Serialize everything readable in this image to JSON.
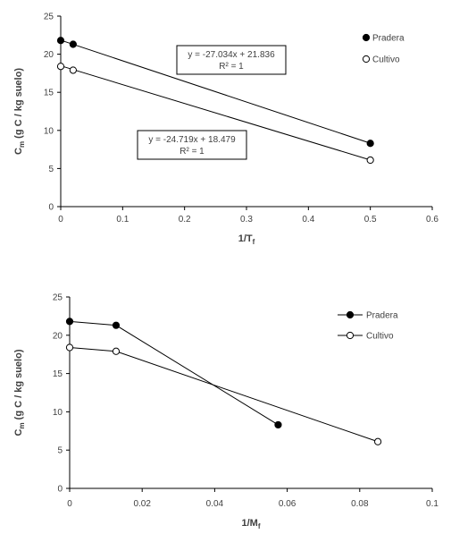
{
  "chart_data": [
    {
      "type": "scatter",
      "xlabel": {
        "main": "1/T",
        "sub": "f"
      },
      "ylabel": {
        "main": "C",
        "sub": "m",
        "rest": " (g C / kg suelo)"
      },
      "xlim": [
        0,
        0.6
      ],
      "ylim": [
        0,
        25
      ],
      "xticks": [
        0,
        0.1,
        0.2,
        0.3,
        0.4,
        0.5,
        0.6
      ],
      "xtick_labels": [
        "0",
        "0.1",
        "0.2",
        "0.3",
        "0.4",
        "0.5",
        "0.6"
      ],
      "yticks": [
        0,
        5,
        10,
        15,
        20,
        25
      ],
      "ytick_labels": [
        "0",
        "5",
        "10",
        "15",
        "20",
        "25"
      ],
      "legend_position": "top-right",
      "series": [
        {
          "name": "Pradera",
          "marker": "filled",
          "x": [
            0,
            0.02,
            0.5
          ],
          "y": [
            21.8,
            21.3,
            8.3
          ],
          "trendline": {
            "slope": -27.034,
            "intercept": 21.836,
            "x_range": [
              0,
              0.5
            ]
          },
          "equation": "y = -27.034x + 21.836",
          "r2": "R² = 1"
        },
        {
          "name": "Cultivo",
          "marker": "open",
          "x": [
            0,
            0.02,
            0.5
          ],
          "y": [
            18.4,
            17.9,
            6.1
          ],
          "trendline": {
            "slope": -24.719,
            "intercept": 18.479,
            "x_range": [
              0,
              0.5
            ]
          },
          "equation": "y = -24.719x + 18.479",
          "r2": "R² = 1"
        }
      ]
    },
    {
      "type": "line",
      "xlabel": {
        "main": "1/M",
        "sub": "f"
      },
      "ylabel": {
        "main": "C",
        "sub": "m",
        "rest": " (g C / kg suelo)"
      },
      "xlim": [
        0,
        0.1
      ],
      "ylim": [
        0,
        25
      ],
      "xticks": [
        0,
        0.02,
        0.04,
        0.06,
        0.08,
        0.1
      ],
      "xtick_labels": [
        "0",
        "0.02",
        "0.04",
        "0.06",
        "0.08",
        "0.1"
      ],
      "yticks": [
        0,
        5,
        10,
        15,
        20,
        25
      ],
      "ytick_labels": [
        "0",
        "5",
        "10",
        "15",
        "20",
        "25"
      ],
      "legend_position": "top-right",
      "series": [
        {
          "name": "Pradera",
          "marker": "filled",
          "x": [
            0,
            0.0128,
            0.0575
          ],
          "y": [
            21.8,
            21.3,
            8.3
          ]
        },
        {
          "name": "Cultivo",
          "marker": "open",
          "x": [
            0,
            0.0128,
            0.085
          ],
          "y": [
            18.4,
            17.9,
            6.1
          ]
        }
      ]
    }
  ]
}
